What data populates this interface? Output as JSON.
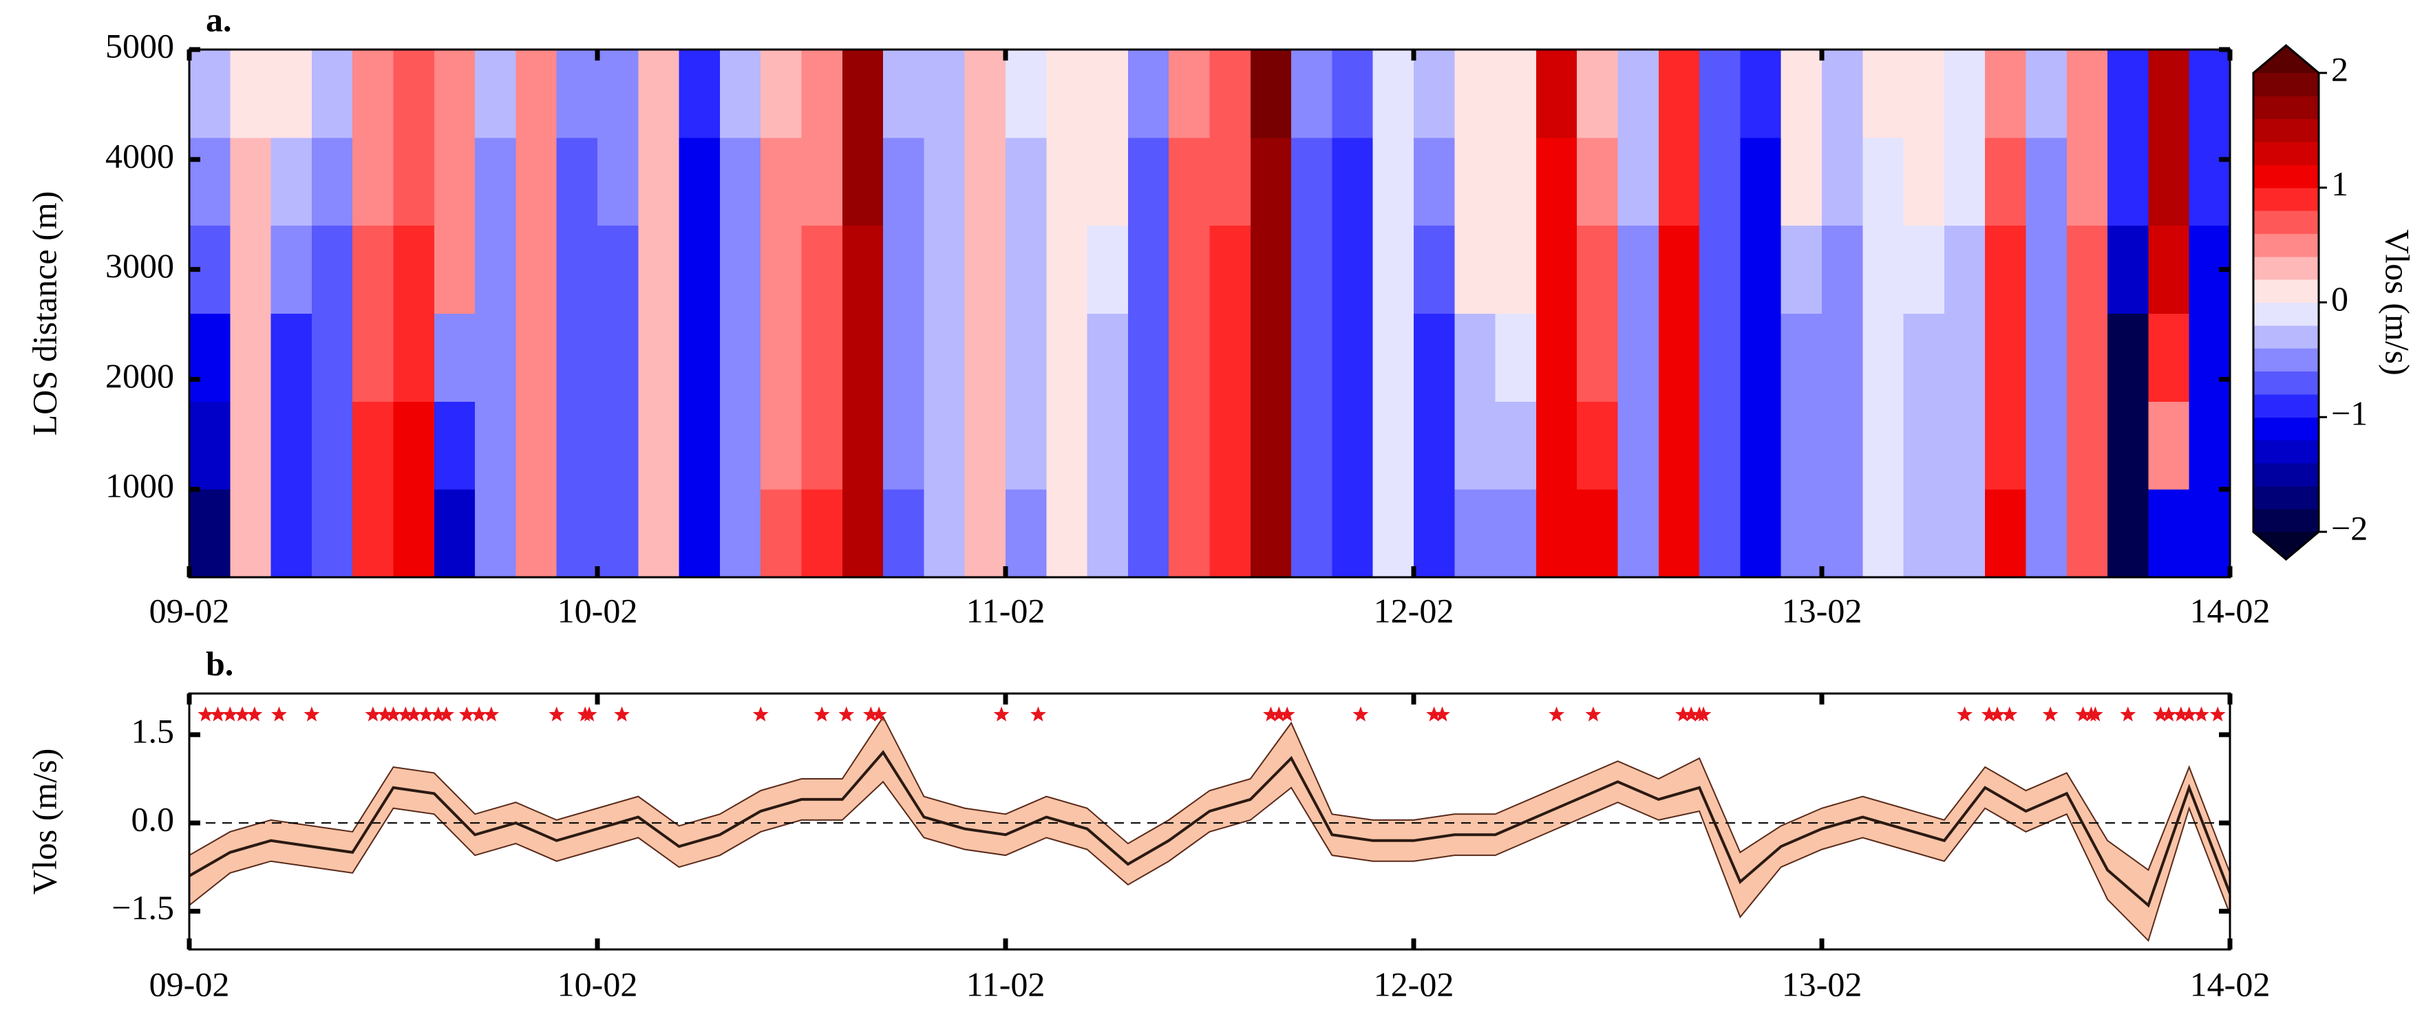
{
  "chart_data": [
    {
      "type": "heatmap",
      "title": "a.",
      "ylabel": "LOS distance (m)",
      "x": [
        9.05,
        9.15,
        9.25,
        9.35,
        9.45,
        9.55,
        9.65,
        9.75,
        9.85,
        9.95,
        10.05,
        10.15,
        10.25,
        10.35,
        10.45,
        10.55,
        10.65,
        10.75,
        10.85,
        10.95,
        11.05,
        11.15,
        11.25,
        11.35,
        11.45,
        11.55,
        11.65,
        11.75,
        11.85,
        11.95,
        12.05,
        12.15,
        12.25,
        12.35,
        12.45,
        12.55,
        12.65,
        12.75,
        12.85,
        12.95,
        13.05,
        13.15,
        13.25,
        13.35,
        13.45,
        13.55,
        13.65,
        13.75,
        13.85,
        13.95
      ],
      "y_edges": [
        200,
        1000,
        1800,
        2600,
        3400,
        4200,
        5000
      ],
      "z": [
        [
          -1.6,
          0.3,
          -1.0,
          -0.8,
          0.8,
          1.0,
          -1.4,
          -0.6,
          0.4,
          -0.8,
          -0.7,
          0.3,
          -1.2,
          -0.5,
          0.6,
          0.8,
          1.4,
          -0.8,
          -0.4,
          0.3,
          -0.6,
          0.1,
          -0.4,
          -0.8,
          0.6,
          0.8,
          1.6,
          -0.8,
          -1.0,
          -0.2,
          -0.9,
          -0.6,
          -0.5,
          1.0,
          1.0,
          -0.5,
          1.0,
          -0.8,
          -1.2,
          -0.6,
          -0.5,
          -0.2,
          -0.3,
          -0.4,
          1.0,
          -0.6,
          0.6,
          -1.8,
          -1.2,
          -1.2
        ],
        [
          -1.4,
          0.3,
          -1.0,
          -0.8,
          0.8,
          1.0,
          -1.0,
          -0.6,
          0.4,
          -0.8,
          -0.7,
          0.3,
          -1.2,
          -0.5,
          0.5,
          0.7,
          1.5,
          -0.6,
          -0.4,
          0.3,
          -0.4,
          0.1,
          -0.3,
          -0.8,
          0.6,
          0.8,
          1.6,
          -0.8,
          -1.0,
          -0.2,
          -0.9,
          -0.4,
          -0.3,
          1.0,
          0.8,
          -0.5,
          1.0,
          -0.8,
          -1.2,
          -0.6,
          -0.5,
          -0.2,
          -0.3,
          -0.4,
          0.8,
          -0.6,
          0.6,
          -1.8,
          0.4,
          -1.2
        ],
        [
          -1.2,
          0.3,
          -0.9,
          -0.8,
          0.7,
          0.9,
          -0.6,
          -0.6,
          0.4,
          -0.8,
          -0.7,
          0.3,
          -1.2,
          -0.5,
          0.4,
          0.6,
          1.5,
          -0.6,
          -0.4,
          0.3,
          -0.4,
          0.1,
          -0.3,
          -0.8,
          0.6,
          0.8,
          1.6,
          -0.8,
          -1.0,
          -0.2,
          -0.9,
          -0.3,
          -0.1,
          1.0,
          0.7,
          -0.5,
          1.0,
          -0.8,
          -1.2,
          -0.6,
          -0.5,
          -0.2,
          -0.3,
          -0.4,
          0.8,
          -0.6,
          0.6,
          -1.8,
          0.8,
          -1.2
        ],
        [
          -0.8,
          0.3,
          -0.6,
          -0.7,
          0.6,
          0.8,
          0.4,
          -0.6,
          0.4,
          -0.8,
          -0.7,
          0.3,
          -1.2,
          -0.5,
          0.4,
          0.6,
          1.5,
          -0.6,
          -0.4,
          0.3,
          -0.4,
          0.0,
          -0.2,
          -0.8,
          0.6,
          0.8,
          1.7,
          -0.8,
          -1.0,
          -0.2,
          -0.8,
          0.0,
          0.0,
          1.0,
          0.6,
          -0.5,
          1.0,
          -0.8,
          -1.2,
          -0.4,
          -0.5,
          -0.2,
          -0.2,
          -0.3,
          0.8,
          -0.6,
          0.6,
          -1.4,
          1.2,
          -1.2
        ],
        [
          -0.5,
          0.2,
          -0.3,
          -0.5,
          0.5,
          0.7,
          0.5,
          -0.5,
          0.4,
          -0.7,
          -0.6,
          0.3,
          -1.1,
          -0.5,
          0.4,
          0.5,
          1.6,
          -0.5,
          -0.3,
          0.2,
          -0.3,
          0.0,
          0.0,
          -0.7,
          0.6,
          0.7,
          1.7,
          -0.7,
          -0.9,
          -0.2,
          -0.6,
          0.0,
          0.0,
          1.1,
          0.4,
          -0.4,
          0.9,
          -0.8,
          -1.1,
          0.0,
          -0.4,
          -0.1,
          0.0,
          -0.2,
          0.6,
          -0.5,
          0.5,
          -1.0,
          1.4,
          -1.0
        ],
        [
          -0.3,
          0.1,
          0.0,
          -0.3,
          0.4,
          0.6,
          0.5,
          -0.4,
          0.4,
          -0.6,
          -0.5,
          0.3,
          -1.0,
          -0.4,
          0.3,
          0.5,
          1.6,
          -0.4,
          -0.3,
          0.2,
          -0.2,
          0.0,
          0.0,
          -0.6,
          0.5,
          0.7,
          1.8,
          -0.6,
          -0.8,
          -0.1,
          -0.4,
          0.0,
          0.0,
          1.2,
          0.3,
          -0.3,
          0.8,
          -0.7,
          -1.0,
          0.0,
          -0.3,
          0.0,
          0.0,
          -0.1,
          0.5,
          -0.4,
          0.4,
          -0.9,
          1.5,
          -0.9
        ]
      ],
      "xlim": [
        9,
        14
      ],
      "xticks": [
        {
          "value": 9,
          "label": "09-02"
        },
        {
          "value": 10,
          "label": "10-02"
        },
        {
          "value": 11,
          "label": "11-02"
        },
        {
          "value": 12,
          "label": "12-02"
        },
        {
          "value": 13,
          "label": "13-02"
        },
        {
          "value": 14,
          "label": "14-02"
        }
      ],
      "ylim": [
        200,
        5000
      ],
      "yticks": [
        1000,
        2000,
        3000,
        4000,
        5000
      ],
      "colorbar": {
        "label": "Vlos (m/s)",
        "clim": [
          -2,
          2
        ],
        "colors": [
          "#000050",
          "#000078",
          "#0000a0",
          "#0000c8",
          "#0000f0",
          "#2828ff",
          "#5858ff",
          "#8888ff",
          "#b8b8ff",
          "#e4e4ff",
          "#ffe4e4",
          "#ffb8b8",
          "#ff8888",
          "#ff5858",
          "#ff2828",
          "#f00000",
          "#d20000",
          "#b40000",
          "#960000",
          "#780000"
        ],
        "under": "#00002e",
        "over": "#5a0000",
        "ticks": [
          {
            "value": -2,
            "label": "−2"
          },
          {
            "value": -1,
            "label": "−1"
          },
          0,
          1,
          2
        ]
      }
    },
    {
      "type": "line",
      "title": "b.",
      "ylabel": "Vlos (m/s)",
      "x": [
        9.0,
        9.1,
        9.2,
        9.3,
        9.4,
        9.5,
        9.6,
        9.7,
        9.8,
        9.9,
        10.0,
        10.1,
        10.2,
        10.3,
        10.4,
        10.5,
        10.6,
        10.7,
        10.8,
        10.9,
        11.0,
        11.1,
        11.2,
        11.3,
        11.4,
        11.5,
        11.6,
        11.7,
        11.8,
        11.9,
        12.0,
        12.1,
        12.2,
        12.3,
        12.4,
        12.5,
        12.6,
        12.7,
        12.8,
        12.9,
        13.0,
        13.1,
        13.2,
        13.3,
        13.4,
        13.5,
        13.6,
        13.7,
        13.8,
        13.9,
        14.0
      ],
      "series": [
        {
          "color": "#2b1a12",
          "values": [
            -0.9,
            -0.5,
            -0.3,
            -0.4,
            -0.5,
            0.6,
            0.5,
            -0.2,
            0.0,
            -0.3,
            -0.1,
            0.1,
            -0.4,
            -0.2,
            0.2,
            0.4,
            0.4,
            1.2,
            0.1,
            -0.1,
            -0.2,
            0.1,
            -0.1,
            -0.7,
            -0.3,
            0.2,
            0.4,
            1.1,
            -0.2,
            -0.3,
            -0.3,
            -0.2,
            -0.2,
            0.1,
            0.4,
            0.7,
            0.4,
            0.6,
            -1.0,
            -0.4,
            -0.1,
            0.1,
            -0.1,
            -0.3,
            0.6,
            0.2,
            0.5,
            -0.8,
            -1.4,
            0.6,
            -1.2
          ]
        }
      ],
      "band": {
        "color": "#f9c4a8",
        "edge": "#5a2a1a",
        "upper": [
          -0.55,
          -0.15,
          0.05,
          -0.05,
          -0.15,
          0.95,
          0.85,
          0.15,
          0.35,
          0.05,
          0.25,
          0.45,
          -0.05,
          0.15,
          0.55,
          0.75,
          0.75,
          1.8,
          0.45,
          0.25,
          0.15,
          0.45,
          0.25,
          -0.35,
          0.05,
          0.55,
          0.75,
          1.7,
          0.15,
          0.05,
          0.05,
          0.15,
          0.15,
          0.45,
          0.75,
          1.05,
          0.75,
          1.1,
          -0.5,
          -0.05,
          0.25,
          0.45,
          0.25,
          0.05,
          0.95,
          0.55,
          0.85,
          -0.3,
          -0.8,
          0.95,
          -0.85
        ],
        "lower": [
          -1.4,
          -0.85,
          -0.65,
          -0.75,
          -0.85,
          0.25,
          0.15,
          -0.55,
          -0.35,
          -0.65,
          -0.45,
          -0.25,
          -0.75,
          -0.55,
          -0.15,
          0.05,
          0.05,
          0.7,
          -0.25,
          -0.45,
          -0.55,
          -0.25,
          -0.45,
          -1.05,
          -0.65,
          -0.15,
          0.05,
          0.6,
          -0.55,
          -0.65,
          -0.65,
          -0.55,
          -0.55,
          -0.25,
          0.05,
          0.35,
          0.05,
          0.2,
          -1.6,
          -0.75,
          -0.45,
          -0.25,
          -0.45,
          -0.65,
          0.25,
          -0.15,
          0.15,
          -1.3,
          -2.0,
          0.25,
          -1.55
        ]
      },
      "reference_line": 0,
      "markers": {
        "color": "#e8141c",
        "y": 1.84,
        "x": [
          9.04,
          9.07,
          9.1,
          9.13,
          9.16,
          9.22,
          9.3,
          9.45,
          9.48,
          9.5,
          9.53,
          9.55,
          9.58,
          9.61,
          9.63,
          9.68,
          9.71,
          9.74,
          9.9,
          9.97,
          9.98,
          10.06,
          10.4,
          10.55,
          10.61,
          10.67,
          10.69,
          10.99,
          11.08,
          11.65,
          11.67,
          11.69,
          11.87,
          12.05,
          12.07,
          12.35,
          12.44,
          12.66,
          12.68,
          12.7,
          12.71,
          13.35,
          13.41,
          13.43,
          13.46,
          13.56,
          13.64,
          13.66,
          13.67,
          13.75,
          13.83,
          13.85,
          13.88,
          13.9,
          13.93,
          13.97
        ]
      },
      "xlim": [
        9,
        14
      ],
      "xticks": [
        {
          "value": 9,
          "label": "09-02"
        },
        {
          "value": 10,
          "label": "10-02"
        },
        {
          "value": 11,
          "label": "11-02"
        },
        {
          "value": 12,
          "label": "12-02"
        },
        {
          "value": 13,
          "label": "13-02"
        },
        {
          "value": 14,
          "label": "14-02"
        }
      ],
      "ylim": [
        -2.15,
        2.2
      ],
      "yticks": [
        {
          "value": -1.5,
          "label": "−1.5"
        },
        {
          "value": 0,
          "label": "0.0"
        },
        {
          "value": 1.5,
          "label": "1.5"
        }
      ]
    }
  ]
}
